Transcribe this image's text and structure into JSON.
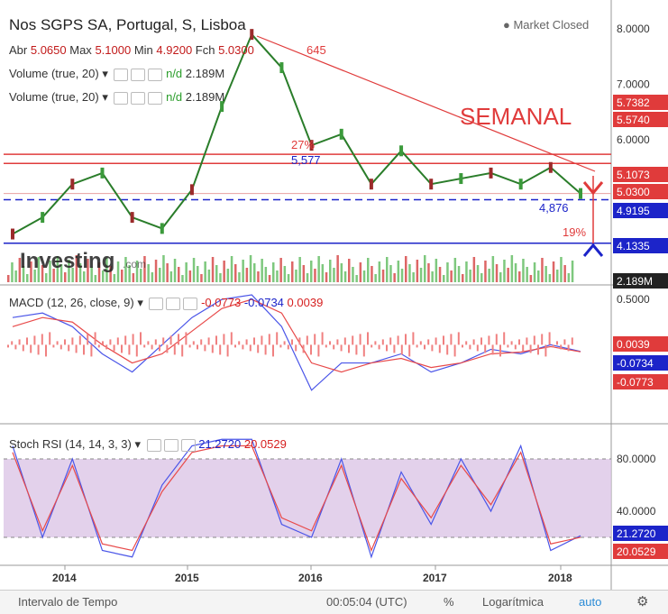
{
  "header": {
    "title": "Nos SGPS SA, Portugal, S, Lisboa",
    "market_status": "Market Closed",
    "ohlc_abr_label": "Abr",
    "ohlc_abr": "5.0650",
    "ohlc_max_label": "Max",
    "ohlc_max": "5.1000",
    "ohlc_min_label": "Min",
    "ohlc_min": "4.9200",
    "ohlc_fch_label": "Fch",
    "ohlc_fch": "5.0300",
    "volume_label": "Volume (true, 20)",
    "volume_na": "n/d",
    "volume_value": "2.189M"
  },
  "annotations": {
    "semanal": "SEMANAL",
    "pct27": "27%",
    "pct19": "19%",
    "lvl_5577": "5,577",
    "lvl_4876": "4,876",
    "peak_label": "645",
    "watermark": "Investing",
    "watermark_suffix": ".com"
  },
  "price_axis": {
    "ticks": [
      "8.0000",
      "7.0000",
      "6.0000"
    ],
    "tags": [
      {
        "text": "5.7382",
        "color": "#e03b3b",
        "value": 5.7382
      },
      {
        "text": "5.5740",
        "color": "#e03b3b",
        "value": 5.574
      },
      {
        "text": "5.1073",
        "color": "#e03b3b",
        "value": 5.1073
      },
      {
        "text": "5.0300",
        "color": "#e03b3b",
        "value": 5.03
      },
      {
        "text": "4.9195",
        "color": "#1c24c9",
        "value": 4.9195
      },
      {
        "text": "4.1335",
        "color": "#1c24c9",
        "value": 4.1335
      },
      {
        "text": "2.189M",
        "color": "#222222",
        "value": 0
      }
    ]
  },
  "macd": {
    "label": "MACD (12, 26, close, 9)",
    "v1": "-0.0773",
    "v2": "-0.0734",
    "v3": "0.0039",
    "ticks": [
      "0.5000"
    ],
    "tags": [
      {
        "text": "0.0039",
        "color": "#e03b3b"
      },
      {
        "text": "-0.0734",
        "color": "#1c24c9"
      },
      {
        "text": "-0.0773",
        "color": "#e03b3b"
      }
    ]
  },
  "stoch": {
    "label": "Stoch RSI (14, 14, 3, 3)",
    "v1": "21.2720",
    "v2": "20.0529",
    "ticks": [
      "80.0000",
      "40.0000"
    ],
    "tags": [
      {
        "text": "21.2720",
        "color": "#1c24c9"
      },
      {
        "text": "20.0529",
        "color": "#e03b3b"
      }
    ]
  },
  "x_axis": {
    "labels": [
      "2014",
      "2015",
      "2016",
      "2017",
      "2018"
    ]
  },
  "bottom_bar": {
    "interval": "Intervalo de Tempo",
    "clock": "00:05:04 (UTC)",
    "percent": "%",
    "log": "Logarítmica",
    "auto": "auto"
  },
  "chart_data": {
    "type": "line",
    "title": "Nos SGPS SA, Portugal, S, Lisboa",
    "timeframe": "weekly",
    "x": [
      "2013-07",
      "2013-10",
      "2014-01",
      "2014-04",
      "2014-07",
      "2014-10",
      "2015-01",
      "2015-04",
      "2015-07",
      "2015-10",
      "2016-01",
      "2016-04",
      "2016-07",
      "2016-10",
      "2017-01",
      "2017-04",
      "2017-07",
      "2017-10",
      "2018-01",
      "2018-02"
    ],
    "series": [
      {
        "values": [
          4.3,
          4.6,
          5.2,
          5.4,
          4.6,
          4.4,
          5.1,
          6.6,
          7.9,
          7.3,
          5.9,
          6.1,
          5.2,
          5.8,
          5.2,
          5.3,
          5.4,
          5.2,
          5.5,
          5.03
        ]
      }
    ],
    "ylim": [
      3.6,
      8.2
    ],
    "horizontal_levels": [
      5.7382,
      5.574,
      5.1073,
      5.03,
      4.9195,
      4.1335
    ],
    "macd_ylim": [
      -0.85,
      0.6
    ],
    "macd_series": [
      {
        "values": [
          0.3,
          0.35,
          0.2,
          -0.1,
          -0.3,
          0.0,
          0.3,
          0.5,
          0.55,
          0.2,
          -0.5,
          -0.2,
          -0.2,
          -0.1,
          -0.3,
          -0.2,
          -0.05,
          -0.1,
          0.0,
          -0.0734
        ]
      },
      {
        "values": [
          0.2,
          0.3,
          0.25,
          0.0,
          -0.2,
          -0.1,
          0.15,
          0.4,
          0.5,
          0.35,
          -0.2,
          -0.3,
          -0.2,
          -0.15,
          -0.25,
          -0.2,
          -0.1,
          -0.08,
          -0.02,
          -0.0773
        ]
      }
    ],
    "stoch_ylim": [
      0,
      100
    ],
    "stoch_series": [
      {
        "values": [
          90,
          20,
          80,
          10,
          5,
          60,
          90,
          95,
          95,
          30,
          20,
          80,
          5,
          70,
          30,
          80,
          40,
          90,
          10,
          21.272
        ]
      },
      {
        "values": [
          85,
          25,
          75,
          15,
          10,
          55,
          85,
          90,
          90,
          35,
          25,
          75,
          10,
          65,
          35,
          75,
          45,
          85,
          15,
          20.0529
        ]
      }
    ]
  }
}
